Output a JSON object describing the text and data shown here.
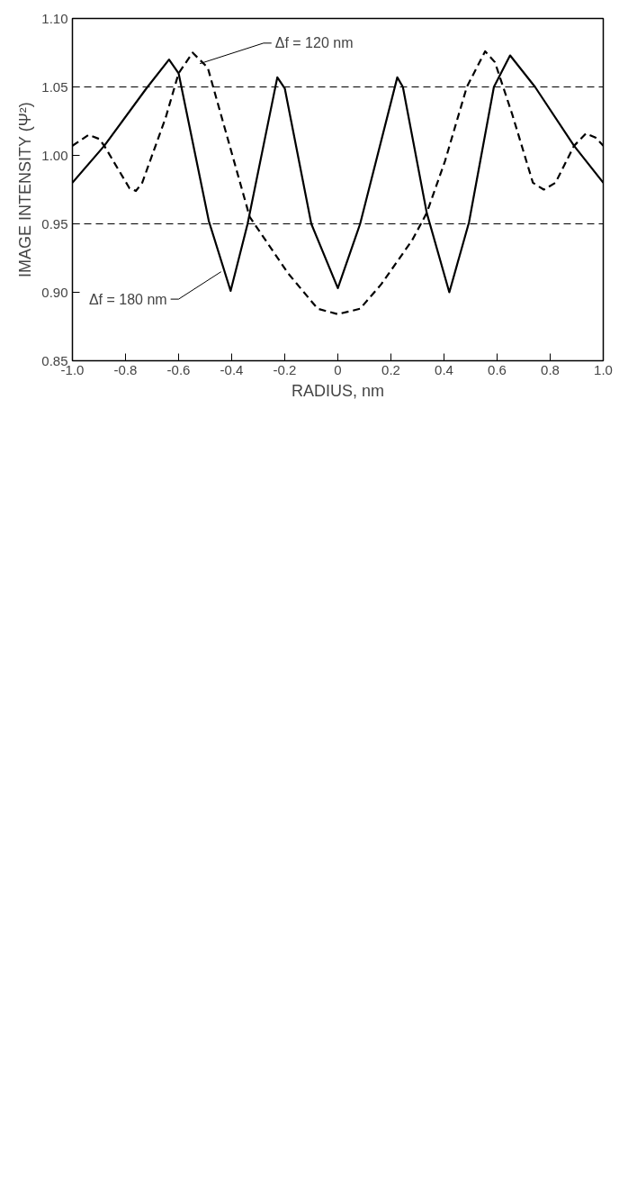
{
  "chart_data": {
    "type": "line",
    "xlabel": "RADIUS, nm",
    "ylabel": "IMAGE INTENSITY (Ψ²)",
    "xlim": [
      -1.0,
      1.0
    ],
    "ylim": [
      0.85,
      1.1
    ],
    "xticks": [
      {
        "value": -1.0,
        "label": "-1.0"
      },
      {
        "value": -0.8,
        "label": "-0.8"
      },
      {
        "value": -0.6,
        "label": "-0.6"
      },
      {
        "value": -0.4,
        "label": "-0.4"
      },
      {
        "value": -0.2,
        "label": "-0.2"
      },
      0,
      {
        "value": 0.2,
        "label": "0.2"
      },
      {
        "value": 0.4,
        "label": "0.4"
      },
      {
        "value": 0.6,
        "label": "0.6"
      },
      {
        "value": 0.8,
        "label": "0.8"
      },
      {
        "value": 1.0,
        "label": "1.0"
      }
    ],
    "yticks": [
      {
        "value": 0.85,
        "label": "0.85"
      },
      {
        "value": 0.9,
        "label": "0.90"
      },
      {
        "value": 0.95,
        "label": "0.95"
      },
      {
        "value": 1.0,
        "label": "1.00"
      },
      {
        "value": 1.05,
        "label": "1.05"
      },
      {
        "value": 1.1,
        "label": "1.10"
      }
    ],
    "grid": false,
    "marker": "none",
    "ref_lines": [
      {
        "axis": "y",
        "value": 1.05,
        "line_style": "dashed"
      },
      {
        "axis": "y",
        "value": 0.95,
        "line_style": "dashed"
      }
    ],
    "series": [
      {
        "color": "#000000",
        "line_style": "solid",
        "x": [
          -1.0,
          -0.88,
          -0.721,
          -0.636,
          -0.6,
          -0.486,
          -0.404,
          -0.34,
          -0.228,
          -0.2,
          -0.1,
          0.0,
          0.084,
          0.224,
          0.245,
          0.335,
          0.42,
          0.494,
          0.588,
          0.649,
          0.743,
          0.89,
          1.0
        ],
        "values": [
          0.98,
          1.007,
          1.049,
          1.07,
          1.06,
          0.952,
          0.901,
          0.95,
          1.057,
          1.049,
          0.95,
          0.903,
          0.95,
          1.057,
          1.05,
          0.958,
          0.9,
          0.951,
          1.05,
          1.073,
          1.05,
          1.007,
          0.98
        ]
      },
      {
        "color": "#000000",
        "line_style": "dashed",
        "x": [
          -1.0,
          -0.939,
          -0.899,
          -0.88,
          -0.785,
          -0.761,
          -0.737,
          -0.648,
          -0.6,
          -0.547,
          -0.49,
          -0.332,
          -0.188,
          -0.076,
          0.0,
          0.084,
          0.164,
          0.28,
          0.335,
          0.404,
          0.486,
          0.555,
          0.592,
          0.657,
          0.735,
          0.776,
          0.82,
          0.89,
          0.935,
          0.971,
          1.0
        ],
        "values": [
          1.007,
          1.015,
          1.012,
          1.007,
          0.976,
          0.974,
          0.98,
          1.028,
          1.06,
          1.075,
          1.064,
          0.955,
          0.914,
          0.888,
          0.884,
          0.888,
          0.906,
          0.938,
          0.958,
          0.996,
          1.05,
          1.076,
          1.068,
          1.03,
          0.98,
          0.975,
          0.98,
          1.007,
          1.016,
          1.013,
          1.007
        ]
      }
    ],
    "annotations": [
      {
        "text": "Δf = 120 nm",
        "x": -0.52,
        "y": 1.067
      },
      {
        "text": "Δf = 180 nm",
        "x": -0.44,
        "y": 0.915
      }
    ]
  }
}
